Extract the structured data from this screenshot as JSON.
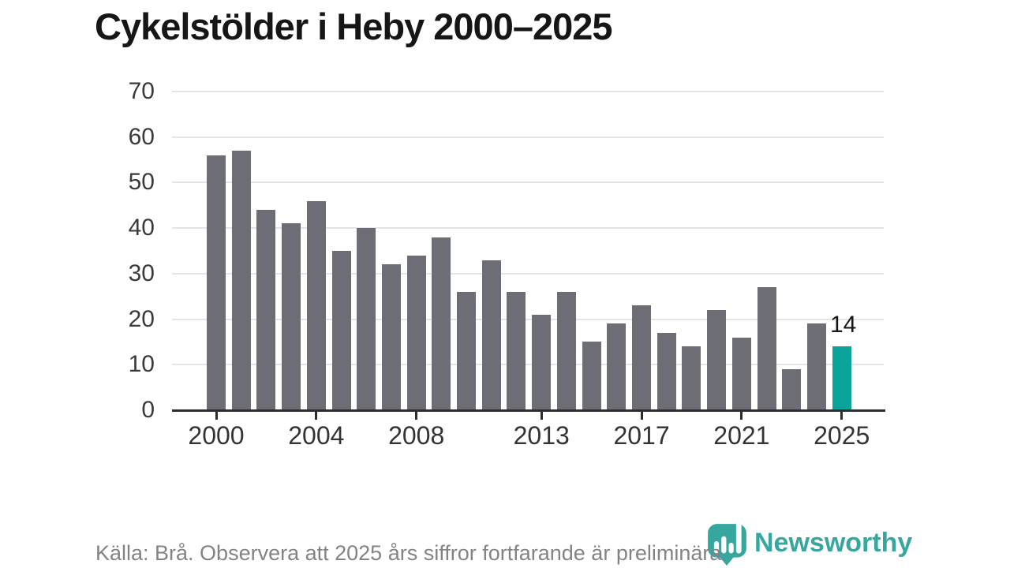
{
  "title": "Cykelstölder i Heby 2000–2025",
  "footer": {
    "source_note": "Källa: Brå. Observera att 2025 års siffror fortfarande är preliminära."
  },
  "logo": {
    "text": "Newsworthy",
    "icon": "newsworthy-pin-bar-chart-icon",
    "color": "#35a79f"
  },
  "colors": {
    "bar_default": "#6d6d75",
    "bar_highlight": "#0ca49a",
    "gridline": "#e5e5e5",
    "axis_line": "#2d2d2d",
    "title_text": "#161616",
    "axis_text": "#3a3a3a",
    "footer_text": "#838383"
  },
  "chart_data": {
    "type": "bar",
    "title": "Cykelstölder i Heby 2000–2025",
    "x": [
      2000,
      2001,
      2002,
      2003,
      2004,
      2005,
      2006,
      2007,
      2008,
      2009,
      2010,
      2011,
      2012,
      2013,
      2014,
      2015,
      2016,
      2017,
      2018,
      2019,
      2020,
      2021,
      2022,
      2023,
      2024,
      2025
    ],
    "values": [
      56,
      57,
      44,
      41,
      46,
      35,
      40,
      32,
      34,
      38,
      26,
      33,
      26,
      21,
      26,
      15,
      19,
      23,
      17,
      14,
      22,
      16,
      27,
      9,
      19,
      14
    ],
    "highlight_index": 25,
    "highlight_value_label": "14",
    "xlabel": "",
    "ylabel": "",
    "ylim": [
      0,
      70
    ],
    "y_ticks": [
      0,
      10,
      20,
      30,
      40,
      50,
      60,
      70
    ],
    "x_tick_labels": [
      2000,
      2004,
      2008,
      2013,
      2017,
      2021,
      2025
    ],
    "grid": "horizontal",
    "legend": "none"
  }
}
